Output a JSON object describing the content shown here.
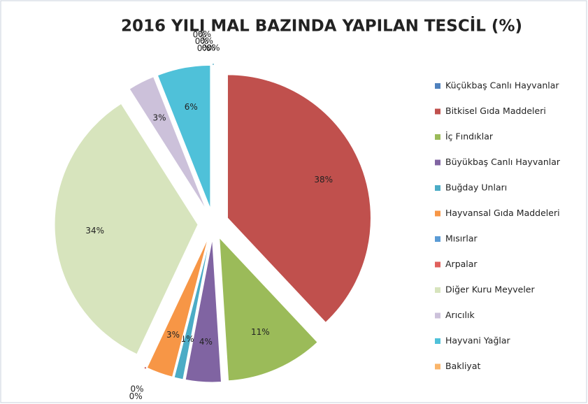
{
  "chart_data": {
    "type": "pie",
    "title": "2016 YILI MAL BAZINDA YAPILAN TESCİL (%)",
    "categories": [
      "Küçükbaş Canlı Hayvanlar",
      "Bitkisel Gıda Maddeleri",
      "İç Fındıklar",
      "Büyükbaş Canlı Hayvanlar",
      "Buğday Unları",
      "Hayvansal Gıda Maddeleri",
      "Mısırlar",
      "Arpalar",
      "Diğer Kuru Meyveler",
      "Arıcılık",
      "Hayvani Yağlar",
      "Bakliyat",
      null,
      null,
      null,
      null,
      null
    ],
    "values": [
      0,
      38,
      11,
      4,
      1,
      3,
      0,
      0,
      34,
      3,
      6,
      0,
      0,
      0,
      0,
      0,
      0
    ],
    "value_labels": [
      "0%",
      "38%",
      "11%",
      "4%",
      "1%",
      "3%",
      "0%",
      "0%",
      "34%",
      "3%",
      "6%",
      "0%",
      "0%",
      "0%",
      "0%",
      "0%",
      "0%"
    ],
    "colors": [
      "#4f81bd",
      "#c0504d",
      "#9bbb59",
      "#8064a2",
      "#4bacc6",
      "#f79646",
      "#5b9bd5",
      "#e0605c",
      "#d7e4bd",
      "#ccc1da",
      "#4fc1d9",
      "#fab56a",
      "#95b3d7",
      "#e6b9b8",
      "#c4d79b",
      "#b2a1c7",
      "#92cddc"
    ]
  }
}
